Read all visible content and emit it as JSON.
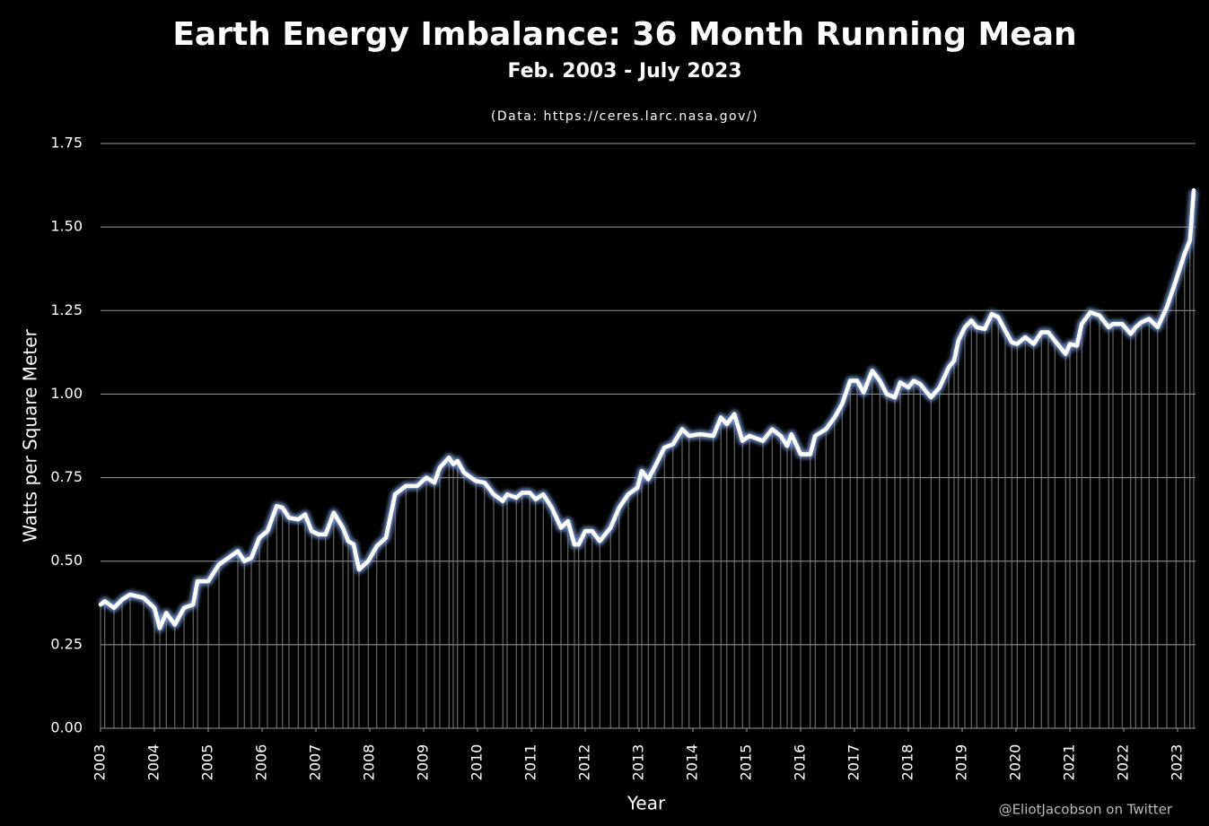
{
  "chart_data": {
    "type": "line",
    "title": "Earth Energy Imbalance: 36 Month Running Mean",
    "subtitle": "Feb. 2003 - July 2023",
    "source": "(Data: https://ceres.larc.nasa.gov/)",
    "x_label": "Year",
    "y_label": "Watts per Square Meter",
    "credit": "@EliotJacobson on Twitter",
    "color": "#ffffff",
    "grid": true,
    "xlim": [
      2003,
      2023.3
    ],
    "xticks": [
      2003,
      2004,
      2005,
      2006,
      2007,
      2008,
      2009,
      2010,
      2011,
      2012,
      2013,
      2014,
      2015,
      2016,
      2017,
      2018,
      2019,
      2020,
      2021,
      2022,
      2023
    ],
    "ylim": [
      0,
      1.75
    ],
    "yticks": [
      {
        "value": 0,
        "label": "0.00"
      },
      {
        "value": 0.25,
        "label": "0.25"
      },
      {
        "value": 0.5,
        "label": "0.50"
      },
      {
        "value": 0.75,
        "label": "0.75"
      },
      {
        "value": 1,
        "label": "1.00"
      },
      {
        "value": 1.25,
        "label": "1.25"
      },
      {
        "value": 1.5,
        "label": "1.50"
      },
      {
        "value": 1.75,
        "label": "1.75"
      }
    ],
    "x": [
      2003.0,
      2003.08,
      2003.25,
      2003.4,
      2003.55,
      2003.8,
      2004.0,
      2004.1,
      2004.22,
      2004.38,
      2004.55,
      2004.72,
      2004.8,
      2005.0,
      2005.2,
      2005.55,
      2005.67,
      2005.8,
      2005.95,
      2006.1,
      2006.27,
      2006.38,
      2006.5,
      2006.67,
      2006.8,
      2006.92,
      2007.05,
      2007.18,
      2007.33,
      2007.5,
      2007.6,
      2007.7,
      2007.8,
      2007.97,
      2008.13,
      2008.3,
      2008.47,
      2008.67,
      2008.88,
      2009.05,
      2009.2,
      2009.3,
      2009.47,
      2009.55,
      2009.63,
      2009.75,
      2009.97,
      2010.13,
      2010.3,
      2010.47,
      2010.55,
      2010.72,
      2010.83,
      2010.97,
      2011.08,
      2011.22,
      2011.38,
      2011.55,
      2011.68,
      2011.8,
      2011.88,
      2012.0,
      2012.13,
      2012.27,
      2012.47,
      2012.63,
      2012.8,
      2012.97,
      2013.05,
      2013.17,
      2013.3,
      2013.47,
      2013.63,
      2013.8,
      2013.93,
      2014.13,
      2014.38,
      2014.52,
      2014.63,
      2014.77,
      2014.92,
      2015.05,
      2015.3,
      2015.47,
      2015.63,
      2015.75,
      2015.83,
      2016.0,
      2016.18,
      2016.27,
      2016.47,
      2016.63,
      2016.77,
      2016.92,
      2017.05,
      2017.17,
      2017.33,
      2017.47,
      2017.6,
      2017.75,
      2017.85,
      2018.0,
      2018.1,
      2018.22,
      2018.42,
      2018.58,
      2018.75,
      2018.85,
      2018.93,
      2019.05,
      2019.17,
      2019.27,
      2019.42,
      2019.55,
      2019.67,
      2019.8,
      2019.92,
      2020.02,
      2020.17,
      2020.33,
      2020.47,
      2020.6,
      2020.72,
      2020.92,
      2021.0,
      2021.13,
      2021.22,
      2021.38,
      2021.55,
      2021.72,
      2021.8,
      2021.97,
      2022.13,
      2022.22,
      2022.33,
      2022.47,
      2022.63,
      2022.8,
      2022.97,
      2023.13,
      2023.23,
      2023.3
    ],
    "values": [
      0.37,
      0.38,
      0.36,
      0.385,
      0.4,
      0.39,
      0.36,
      0.3,
      0.345,
      0.31,
      0.36,
      0.37,
      0.44,
      0.44,
      0.49,
      0.53,
      0.5,
      0.51,
      0.57,
      0.59,
      0.665,
      0.66,
      0.63,
      0.625,
      0.64,
      0.59,
      0.58,
      0.58,
      0.645,
      0.6,
      0.56,
      0.55,
      0.475,
      0.5,
      0.545,
      0.57,
      0.7,
      0.725,
      0.725,
      0.75,
      0.735,
      0.78,
      0.81,
      0.79,
      0.8,
      0.765,
      0.74,
      0.735,
      0.7,
      0.68,
      0.7,
      0.69,
      0.705,
      0.705,
      0.685,
      0.7,
      0.66,
      0.6,
      0.62,
      0.55,
      0.55,
      0.59,
      0.59,
      0.56,
      0.6,
      0.66,
      0.7,
      0.72,
      0.77,
      0.745,
      0.785,
      0.84,
      0.85,
      0.895,
      0.875,
      0.88,
      0.875,
      0.93,
      0.91,
      0.94,
      0.86,
      0.875,
      0.86,
      0.895,
      0.875,
      0.845,
      0.88,
      0.82,
      0.82,
      0.875,
      0.895,
      0.93,
      0.97,
      1.04,
      1.04,
      1.005,
      1.07,
      1.04,
      1.0,
      0.99,
      1.035,
      1.02,
      1.04,
      1.03,
      0.99,
      1.02,
      1.08,
      1.1,
      1.16,
      1.2,
      1.22,
      1.2,
      1.195,
      1.24,
      1.23,
      1.19,
      1.155,
      1.15,
      1.17,
      1.15,
      1.185,
      1.185,
      1.16,
      1.12,
      1.15,
      1.145,
      1.21,
      1.245,
      1.235,
      1.2,
      1.21,
      1.21,
      1.18,
      1.2,
      1.215,
      1.225,
      1.2,
      1.26,
      1.34,
      1.42,
      1.46,
      1.61
    ]
  }
}
